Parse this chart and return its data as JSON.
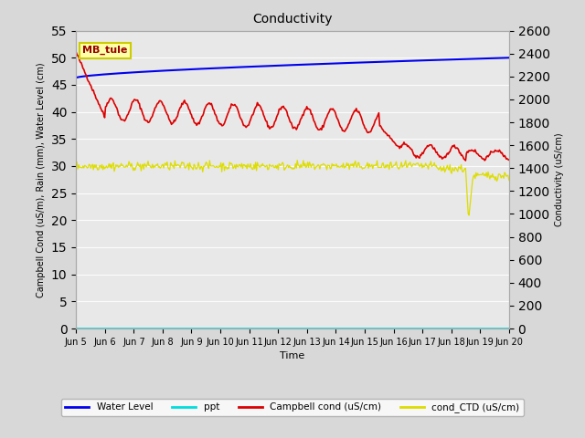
{
  "title": "Conductivity",
  "xlabel": "Time",
  "ylabel_left": "Campbell Cond (uS/m), Rain (mm), Water Level (cm)",
  "ylabel_right": "Conductivity (uS/cm)",
  "ylim_left": [
    0,
    55
  ],
  "ylim_right": [
    0,
    2600
  ],
  "yticks_left": [
    0,
    5,
    10,
    15,
    20,
    25,
    30,
    35,
    40,
    45,
    50,
    55
  ],
  "yticks_right": [
    0,
    200,
    400,
    600,
    800,
    1000,
    1200,
    1400,
    1600,
    1800,
    2000,
    2200,
    2400,
    2600
  ],
  "n_points": 500,
  "fig_bg_color": "#d8d8d8",
  "plot_bg_color": "#e8e8e8",
  "water_level_color": "#0000ee",
  "ppt_color": "#00dddd",
  "campbell_cond_color": "#dd0000",
  "cond_ctd_color": "#dddd00",
  "annotation_text": "MB_tule",
  "annotation_bg": "#ffffaa",
  "annotation_border": "#cccc00",
  "legend_labels": [
    "Water Level",
    "ppt",
    "Campbell cond (uS/cm)",
    "cond_CTD (uS/cm)"
  ],
  "legend_colors": [
    "#0000ee",
    "#00dddd",
    "#dd0000",
    "#dddd00"
  ],
  "xtick_labels": [
    "Jun 5",
    "Jun 6",
    "Jun 7",
    "Jun 8",
    "Jun 9",
    "Jun 10",
    "Jun 11",
    "Jun 12",
    "Jun 13",
    "Jun 14",
    "Jun 15",
    "Jun 16",
    "Jun 17",
    "Jun 18",
    "Jun 19",
    "Jun 20"
  ],
  "grid_color": "#ffffff",
  "grid_alpha": 0.9
}
